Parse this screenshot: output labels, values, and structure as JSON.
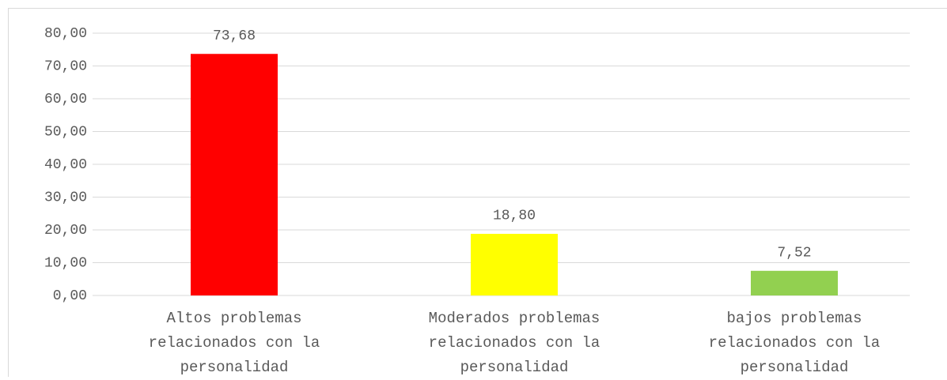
{
  "chart_data": {
    "type": "bar",
    "categories": [
      "Altos problemas relacionados con la personalidad",
      "Moderados problemas relacionados con la personalidad",
      "bajos problemas relacionados con la personalidad"
    ],
    "values": [
      73.68,
      18.8,
      7.52
    ],
    "value_labels": [
      "73,68",
      "18,80",
      "7,52"
    ],
    "colors": [
      "#ff0000",
      "#ffff00",
      "#92d050"
    ],
    "ylim": [
      0,
      80
    ],
    "yticks": [
      {
        "value": 0,
        "label": "0,00"
      },
      {
        "value": 10,
        "label": "10,00"
      },
      {
        "value": 20,
        "label": "20,00"
      },
      {
        "value": 30,
        "label": "30,00"
      },
      {
        "value": 40,
        "label": "40,00"
      },
      {
        "value": 50,
        "label": "50,00"
      },
      {
        "value": 60,
        "label": "60,00"
      },
      {
        "value": 70,
        "label": "70,00"
      },
      {
        "value": 80,
        "label": "80,00"
      }
    ],
    "grid": true
  }
}
